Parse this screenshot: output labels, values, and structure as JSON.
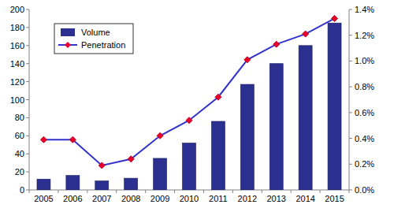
{
  "chart_data": {
    "type": "bar",
    "categories": [
      "2005",
      "2006",
      "2007",
      "2008",
      "2009",
      "2010",
      "2011",
      "2012",
      "2013",
      "2014",
      "2015"
    ],
    "series": [
      {
        "name": "Volume",
        "type": "bar",
        "color": "#2b2f8f",
        "values": [
          12,
          16,
          10,
          13,
          35,
          52,
          76,
          117,
          140,
          160,
          185
        ]
      },
      {
        "name": "Penetration",
        "type": "line",
        "color": "#3333cc",
        "marker": "diamond",
        "axis": "y2",
        "values": [
          0.39,
          0.39,
          0.19,
          0.24,
          0.42,
          0.54,
          0.72,
          1.01,
          1.13,
          1.21,
          1.33
        ]
      }
    ],
    "ylim": [
      0,
      200
    ],
    "yticks": [
      0,
      20,
      40,
      60,
      80,
      100,
      120,
      140,
      160,
      180,
      200
    ],
    "y2lim": [
      0,
      1.4
    ],
    "y2ticks": [
      {
        "value": 0,
        "label": "0.0%"
      },
      {
        "value": 0.2,
        "label": "0.2%"
      },
      {
        "value": 0.4,
        "label": "0.4%"
      },
      {
        "value": 0.6,
        "label": "0.6%"
      },
      {
        "value": 0.8,
        "label": "0.8%"
      },
      {
        "value": 1.0,
        "label": "1.0%"
      },
      {
        "value": 1.2,
        "label": "1.2%"
      },
      {
        "value": 1.4,
        "label": "1.4%"
      }
    ],
    "legend": "top-left"
  }
}
